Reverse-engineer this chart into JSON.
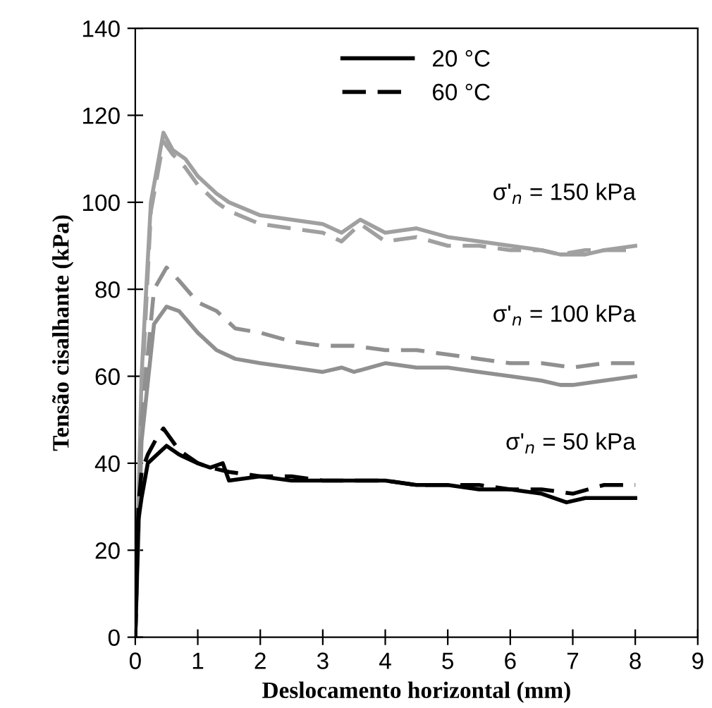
{
  "chart_data": {
    "type": "line",
    "xlabel": "Deslocamento horizontal (mm)",
    "ylabel": "Tensão cisalhante (kPa)",
    "xlim": [
      0,
      9
    ],
    "xticks": [
      0,
      1,
      2,
      3,
      4,
      5,
      6,
      7,
      8,
      9
    ],
    "ylim": [
      0,
      140
    ],
    "yticks": [
      0,
      20,
      40,
      60,
      80,
      100,
      120,
      140
    ],
    "grid": false,
    "legend": "top",
    "series": [
      {
        "color": "#a0a0a0",
        "line_style": "solid",
        "x": [
          0,
          0.1,
          0.25,
          0.45,
          0.6,
          0.8,
          1.0,
          1.3,
          1.5,
          2.0,
          2.5,
          3.0,
          3.3,
          3.6,
          4.0,
          4.5,
          5.0,
          5.5,
          6.0,
          6.5,
          6.8,
          7.2,
          7.5,
          8.0
        ],
        "values": [
          0,
          60,
          100,
          116,
          112,
          110,
          106,
          102,
          100,
          97,
          96,
          95,
          93,
          96,
          93,
          94,
          92,
          91,
          90,
          89,
          88,
          88,
          89,
          90
        ]
      },
      {
        "color": "#a0a0a0",
        "line_style": "dashed",
        "x": [
          0,
          0.1,
          0.25,
          0.45,
          0.6,
          0.8,
          1.0,
          1.3,
          1.5,
          2.0,
          2.5,
          3.0,
          3.3,
          3.6,
          4.0,
          4.5,
          5.0,
          5.5,
          6.0,
          6.5,
          6.8,
          7.2,
          7.5,
          8.0
        ],
        "values": [
          0,
          55,
          98,
          114,
          111,
          108,
          104,
          100,
          98,
          95,
          94,
          93,
          91,
          95,
          91,
          92,
          90,
          90,
          89,
          89,
          88,
          89,
          89,
          89
        ]
      },
      {
        "color": "#909090",
        "line_style": "solid",
        "x": [
          0,
          0.1,
          0.3,
          0.5,
          0.7,
          1.0,
          1.3,
          1.6,
          2.0,
          2.5,
          3.0,
          3.3,
          3.5,
          4.0,
          4.5,
          5.0,
          5.5,
          6.0,
          6.5,
          6.8,
          7.0,
          7.5,
          8.0
        ],
        "values": [
          0,
          45,
          72,
          76,
          75,
          70,
          66,
          64,
          63,
          62,
          61,
          62,
          61,
          63,
          62,
          62,
          61,
          60,
          59,
          58,
          58,
          59,
          60
        ]
      },
      {
        "color": "#909090",
        "line_style": "dashed",
        "x": [
          0,
          0.1,
          0.3,
          0.5,
          0.7,
          1.0,
          1.3,
          1.6,
          2.0,
          2.5,
          3.0,
          3.5,
          4.0,
          4.5,
          5.0,
          5.5,
          6.0,
          6.5,
          7.0,
          7.5,
          8.0
        ],
        "values": [
          0,
          50,
          80,
          85,
          82,
          77,
          75,
          71,
          70,
          68,
          67,
          67,
          66,
          66,
          65,
          64,
          63,
          63,
          62,
          63,
          63
        ]
      },
      {
        "name": "20 °C",
        "color": "#000000",
        "line_style": "solid",
        "x": [
          0,
          0.05,
          0.1,
          0.2,
          0.35,
          0.5,
          0.7,
          1.0,
          1.2,
          1.4,
          1.5,
          2.0,
          2.5,
          3.0,
          3.5,
          4.0,
          4.5,
          5.0,
          5.5,
          6.0,
          6.5,
          6.9,
          7.2,
          7.5,
          8.0
        ],
        "values": [
          0,
          27,
          32,
          40,
          42,
          44,
          42,
          40,
          39,
          40,
          36,
          37,
          36,
          36,
          36,
          36,
          35,
          35,
          34,
          34,
          33,
          31,
          32,
          32,
          32
        ]
      },
      {
        "name": "60 °C",
        "color": "#000000",
        "line_style": "dashed",
        "x": [
          0,
          0.05,
          0.1,
          0.2,
          0.35,
          0.45,
          0.7,
          1.0,
          1.2,
          1.5,
          2.0,
          2.5,
          3.0,
          3.5,
          4.0,
          4.5,
          5.0,
          5.5,
          6.0,
          6.5,
          7.0,
          7.5,
          8.0
        ],
        "values": [
          0,
          30,
          38,
          42,
          46,
          48,
          43,
          40,
          39,
          38,
          37,
          37,
          36,
          36,
          36,
          35,
          35,
          35,
          34,
          34,
          33,
          35,
          35
        ]
      }
    ],
    "annotations": [
      "σ'$_{n}$ = 150 kPa",
      "σ'$_{n}$ = 100 kPa",
      "σ'$_{n}$ = 50 kPa"
    ]
  }
}
